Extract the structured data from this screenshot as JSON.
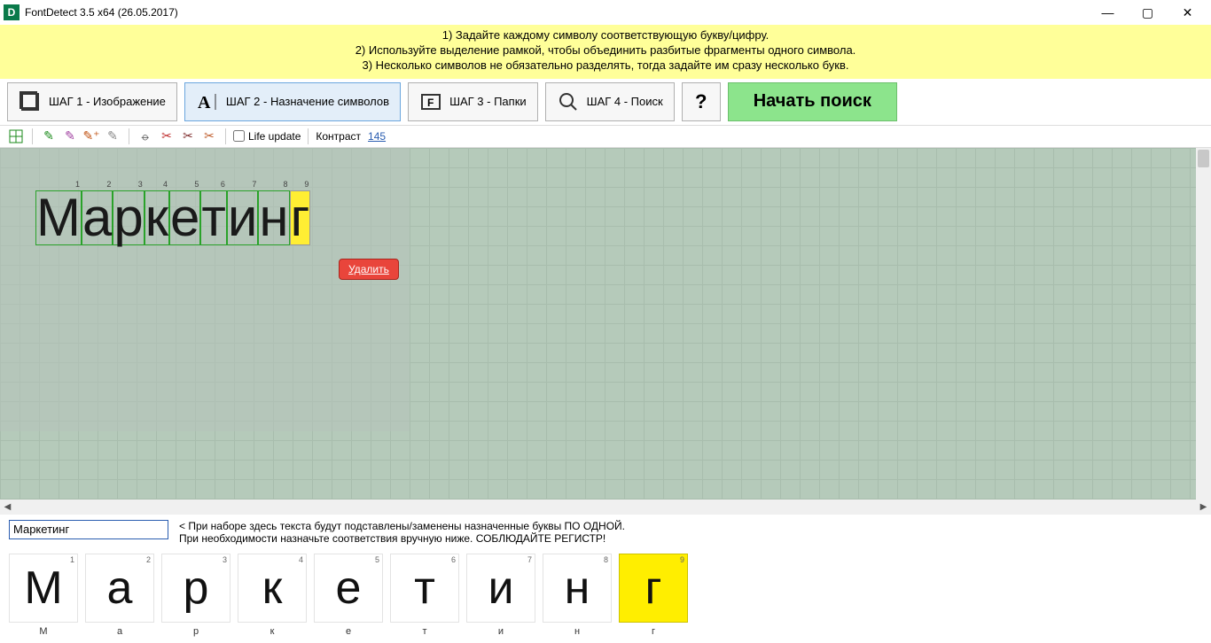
{
  "titlebar": {
    "app_icon_letter": "D",
    "title": "FontDetect 3.5 x64 (26.05.2017)"
  },
  "banner": {
    "line1": "1) Задайте каждому символу соответствующую букву/цифру.",
    "line2": "2) Используйте выделение рамкой, чтобы объединить разбитые фрагменты одного символа.",
    "line3": "3) Несколько символов не обязательно разделять, тогда задайте им сразу несколько букв."
  },
  "steps": {
    "s1": "ШАГ 1 - Изображение",
    "s2": "ШАГ 2 - Назначение символов",
    "s3": "ШАГ 3 - Папки",
    "s4": "ШАГ 4 - Поиск",
    "search_btn": "Начать поиск"
  },
  "toolbar": {
    "life_update": "Life update",
    "contrast_label": "Контраст",
    "contrast_value": "145"
  },
  "canvas": {
    "chars": [
      {
        "n": "1",
        "c": "М"
      },
      {
        "n": "2",
        "c": "а"
      },
      {
        "n": "3",
        "c": "р"
      },
      {
        "n": "4",
        "c": "к"
      },
      {
        "n": "5",
        "c": "е"
      },
      {
        "n": "6",
        "c": "т"
      },
      {
        "n": "7",
        "c": "и"
      },
      {
        "n": "8",
        "c": "н"
      },
      {
        "n": "9",
        "c": "г"
      }
    ],
    "delete_label": "Удалить"
  },
  "bottom": {
    "input_value": "Маркетинг",
    "hint1": "< При наборе здесь текста будут подставлены/заменены назначенные буквы ПО ОДНОЙ.",
    "hint2": "При необходимости назначьте соответствия вручную ниже. СОБЛЮДАЙТЕ РЕГИСТР!",
    "tiles": [
      {
        "n": "1",
        "c": "М",
        "l": "М"
      },
      {
        "n": "2",
        "c": "а",
        "l": "а"
      },
      {
        "n": "3",
        "c": "р",
        "l": "р"
      },
      {
        "n": "4",
        "c": "к",
        "l": "к"
      },
      {
        "n": "5",
        "c": "е",
        "l": "е"
      },
      {
        "n": "6",
        "c": "т",
        "l": "т"
      },
      {
        "n": "7",
        "c": "и",
        "l": "и"
      },
      {
        "n": "8",
        "c": "н",
        "l": "н"
      },
      {
        "n": "9",
        "c": "г",
        "l": "г"
      }
    ]
  }
}
